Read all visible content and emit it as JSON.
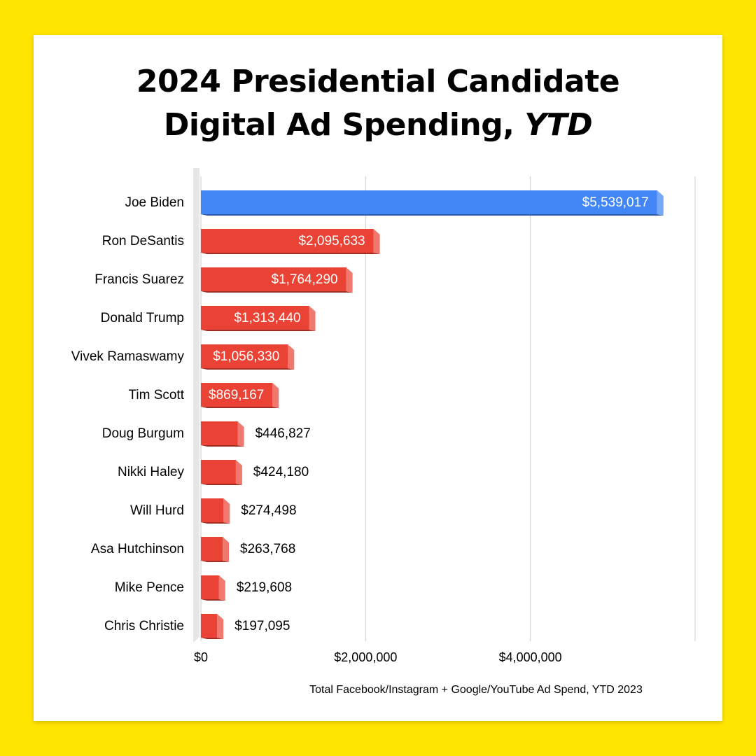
{
  "title": {
    "line1": "2024 Presidential Candidate",
    "line2_prefix": "Digital Ad Spending, ",
    "line2_emph": "YTD"
  },
  "chart_data": {
    "type": "bar",
    "orientation": "horizontal",
    "categories": [
      "Joe Biden",
      "Ron DeSantis",
      "Francis Suarez",
      "Donald Trump",
      "Vivek Ramaswamy",
      "Tim Scott",
      "Doug Burgum",
      "Nikki Haley",
      "Will Hurd",
      "Asa Hutchinson",
      "Mike Pence",
      "Chris Christie"
    ],
    "values": [
      5539017,
      2095633,
      1764290,
      1313440,
      1056330,
      869167,
      446827,
      424180,
      274498,
      263768,
      219608,
      197095
    ],
    "data_labels": [
      "$5,539,017",
      "$2,095,633",
      "$1,764,290",
      "$1,313,440",
      "$1,056,330",
      "$869,167",
      "$446,827",
      "$424,180",
      "$274,498",
      "$263,768",
      "$219,608",
      "$197,095"
    ],
    "bar_colors": [
      "#4285F4",
      "#EA4335",
      "#EA4335",
      "#EA4335",
      "#EA4335",
      "#EA4335",
      "#EA4335",
      "#EA4335",
      "#EA4335",
      "#EA4335",
      "#EA4335",
      "#EA4335"
    ],
    "x_ticks": [
      0,
      2000000,
      4000000,
      6000000
    ],
    "x_tick_labels": [
      "$0",
      "$2,000,000",
      "$4,000,000",
      ""
    ],
    "xlim": [
      0,
      6000000
    ],
    "xlabel": "Total Facebook/Instagram + Google/YouTube Ad Spend, YTD 2023",
    "grid": true,
    "legend": "none"
  }
}
